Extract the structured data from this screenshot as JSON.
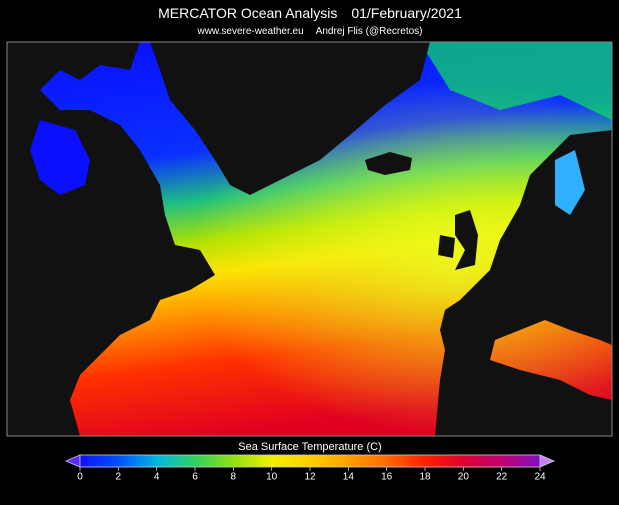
{
  "header": {
    "title": "MERCATOR Ocean Analysis",
    "date": "01/February/2021",
    "credits": [
      "www.severe-weather.eu",
      "Andrej Flis (@Recretos)"
    ]
  },
  "colorbar": {
    "label": "Sea Surface Temperature (C)",
    "range": [
      0,
      24
    ],
    "ticks": [
      0,
      2,
      4,
      6,
      8,
      10,
      12,
      14,
      16,
      18,
      20,
      22,
      24
    ],
    "colors": [
      "#1010ff",
      "#0050ff",
      "#00b8e0",
      "#30d060",
      "#90e010",
      "#f0f000",
      "#ffd000",
      "#ffa000",
      "#ff6a00",
      "#ff2000",
      "#e00030",
      "#c00070",
      "#8010c0"
    ]
  }
}
